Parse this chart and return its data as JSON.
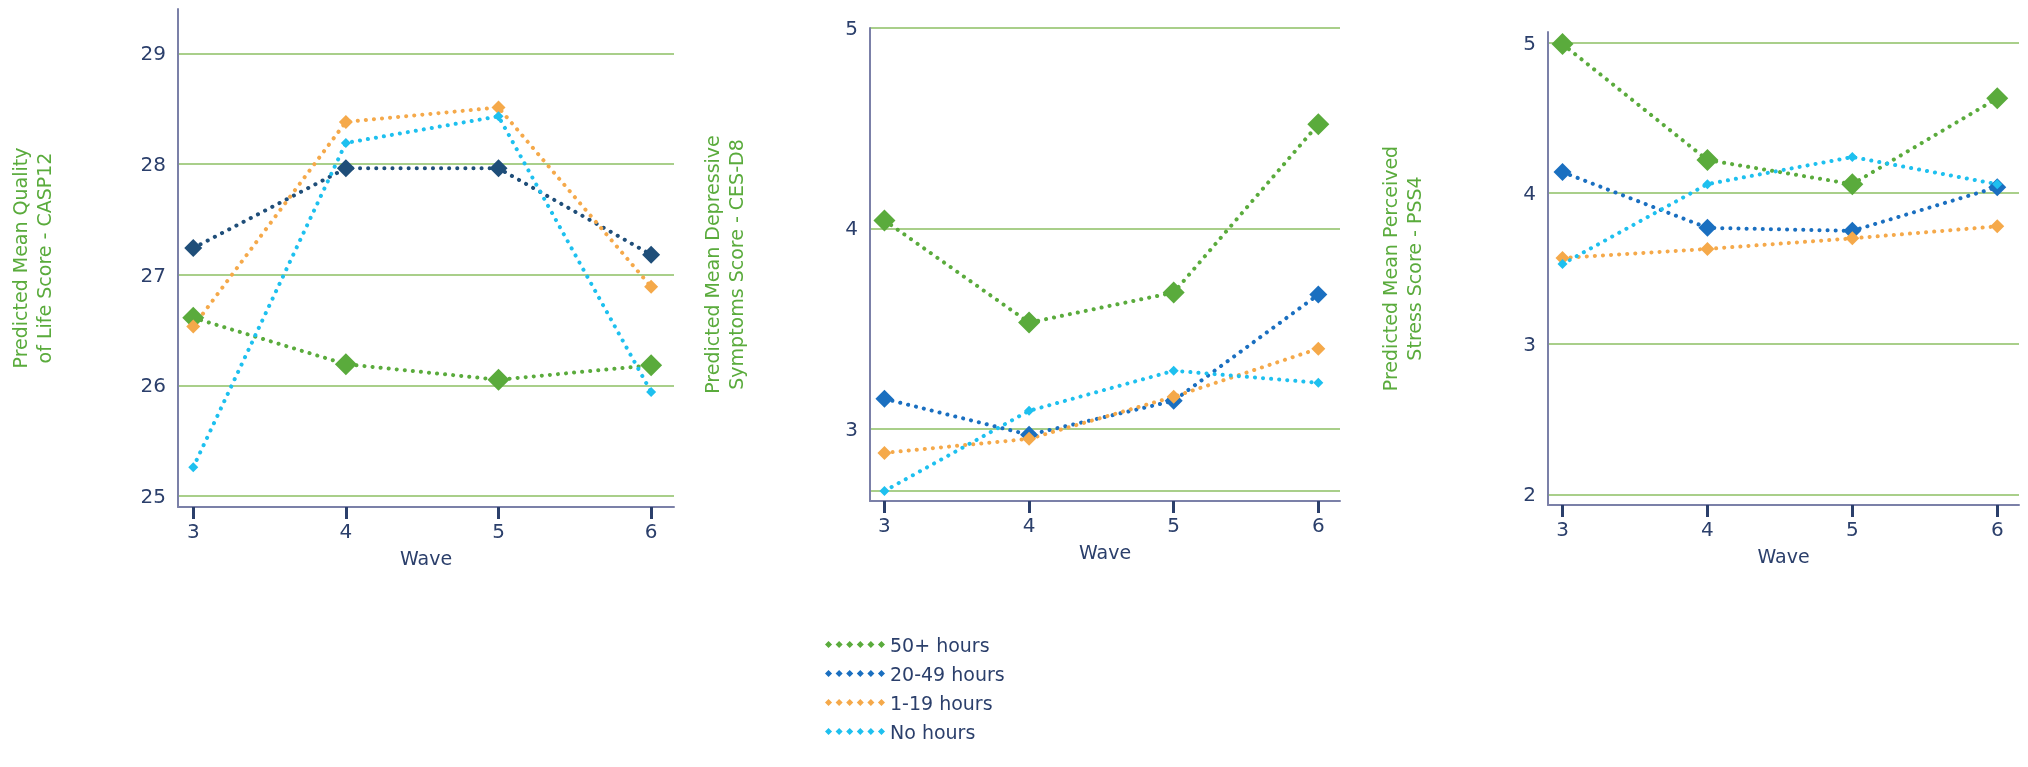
{
  "chart_data": [
    {
      "type": "line",
      "xlabel": "Wave",
      "ylabel": "Predicted Mean Quality of Life Score - CASP12",
      "x": [
        3,
        4,
        5,
        6
      ],
      "xlim": [
        2.9,
        6.15
      ],
      "xticks": [
        3,
        4,
        5,
        6
      ],
      "ylim": [
        24.9,
        29.4
      ],
      "yticks": [
        25,
        26,
        27,
        28,
        29
      ],
      "grid": "y",
      "marker": "diamond",
      "line_style": "dotted",
      "series": [
        {
          "color": "#5aab3c",
          "values": [
            26.61,
            26.19,
            26.05,
            26.18
          ]
        },
        {
          "color": "#1f4e79",
          "values": [
            27.24,
            27.96,
            27.96,
            27.18
          ]
        },
        {
          "color": "#f5a94a",
          "values": [
            26.53,
            28.38,
            28.51,
            26.89
          ]
        },
        {
          "color": "#1ec0ef",
          "values": [
            25.26,
            28.19,
            28.43,
            25.94
          ]
        }
      ]
    },
    {
      "type": "line",
      "xlabel": "Wave",
      "ylabel": "Predicted Mean Depressive Symptoms Score - CES-D8",
      "x": [
        3,
        4,
        5,
        6
      ],
      "xlim": [
        2.9,
        6.15
      ],
      "xticks": [
        3,
        4,
        5,
        6
      ],
      "ylim": [
        2.64,
        5
      ],
      "yticks": [
        {
          "value": 2.69,
          "label": null
        },
        3,
        4,
        5
      ],
      "grid": "y",
      "marker": "diamond",
      "line_style": "dotted",
      "legend": "bottom",
      "series": [
        {
          "name": "50+ hours",
          "color": "#5aab3c",
          "values": [
            4.04,
            3.53,
            3.68,
            4.52
          ]
        },
        {
          "name": "20-49 hours",
          "color": "#1a6fc0",
          "values": [
            3.15,
            2.97,
            3.14,
            3.67
          ]
        },
        {
          "name": "1-19 hours",
          "color": "#f5a94a",
          "values": [
            2.88,
            2.95,
            3.16,
            3.4
          ]
        },
        {
          "name": "No hours",
          "color": "#1ec0ef",
          "values": [
            2.69,
            3.09,
            3.29,
            3.23
          ]
        }
      ]
    },
    {
      "type": "line",
      "xlabel": "Wave",
      "ylabel": "Predicted Mean Perceived Stress Score - PSS4",
      "x": [
        3,
        4,
        5,
        6
      ],
      "xlim": [
        2.9,
        6.15
      ],
      "xticks": [
        3,
        4,
        5,
        6
      ],
      "ylim": [
        1.93,
        5.07
      ],
      "yticks": [
        2,
        3,
        4,
        5
      ],
      "grid": "y",
      "marker": "diamond",
      "line_style": "dotted",
      "series": [
        {
          "color": "#5aab3c",
          "values": [
            4.99,
            4.22,
            4.06,
            4.63
          ]
        },
        {
          "color": "#1a6fc0",
          "values": [
            4.14,
            3.77,
            3.75,
            4.04
          ]
        },
        {
          "color": "#f5a94a",
          "values": [
            3.57,
            3.63,
            3.7,
            3.78
          ]
        },
        {
          "color": "#1ec0ef",
          "values": [
            3.53,
            4.06,
            4.24,
            4.06
          ]
        }
      ]
    }
  ]
}
